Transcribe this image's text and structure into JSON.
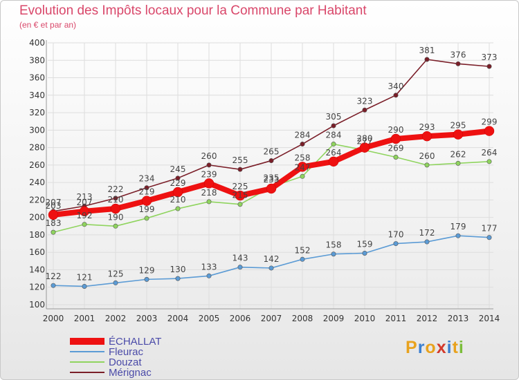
{
  "header": {
    "title": "Evolution des Impôts locaux pour la Commune par Habitant",
    "subtitle": "(en € et par an)"
  },
  "logo": {
    "letters": [
      "P",
      "r",
      "o",
      "x",
      "i",
      "t",
      "i"
    ],
    "colors": [
      "#e8a21e",
      "#3a7fd0",
      "#e8a21e",
      "#d33a2c",
      "#3a7fd0",
      "#e8a21e",
      "#7bbd3a"
    ]
  },
  "chart_data": {
    "type": "line",
    "title": "Evolution des Impôts locaux pour la Commune par Habitant",
    "subtitle": "(en € et par an)",
    "x": [
      "2000",
      "2001",
      "2002",
      "2003",
      "2004",
      "2005",
      "2006",
      "2007",
      "2008",
      "2009",
      "2010",
      "2011",
      "2012",
      "2013",
      "2014"
    ],
    "ylim": [
      100,
      400
    ],
    "yticks": [
      100,
      120,
      140,
      160,
      180,
      200,
      220,
      240,
      260,
      280,
      300,
      320,
      340,
      360,
      380,
      400
    ],
    "grid": true,
    "legend_position": "bottom-left",
    "series": [
      {
        "name": "Mérignac",
        "color": "#7a1e28",
        "values": [
          207,
          213,
          222,
          234,
          245,
          260,
          255,
          265,
          284,
          305,
          323,
          340,
          381,
          376,
          373
        ]
      },
      {
        "name": "Douzat",
        "color": "#8fd45e",
        "values": [
          183,
          192,
          190,
          199,
          210,
          218,
          215,
          235,
          247,
          284,
          277,
          269,
          260,
          262,
          264
        ]
      },
      {
        "name": "Fleurac",
        "color": "#5b9bd5",
        "values": [
          122,
          121,
          125,
          129,
          130,
          133,
          143,
          142,
          152,
          158,
          159,
          170,
          172,
          179,
          177
        ]
      },
      {
        "name": "ÉCHALLAT",
        "color": "#ee1111",
        "values": [
          203,
          207,
          210,
          219,
          229,
          239,
          225,
          233,
          258,
          264,
          280,
          290,
          293,
          295,
          299
        ]
      }
    ]
  }
}
